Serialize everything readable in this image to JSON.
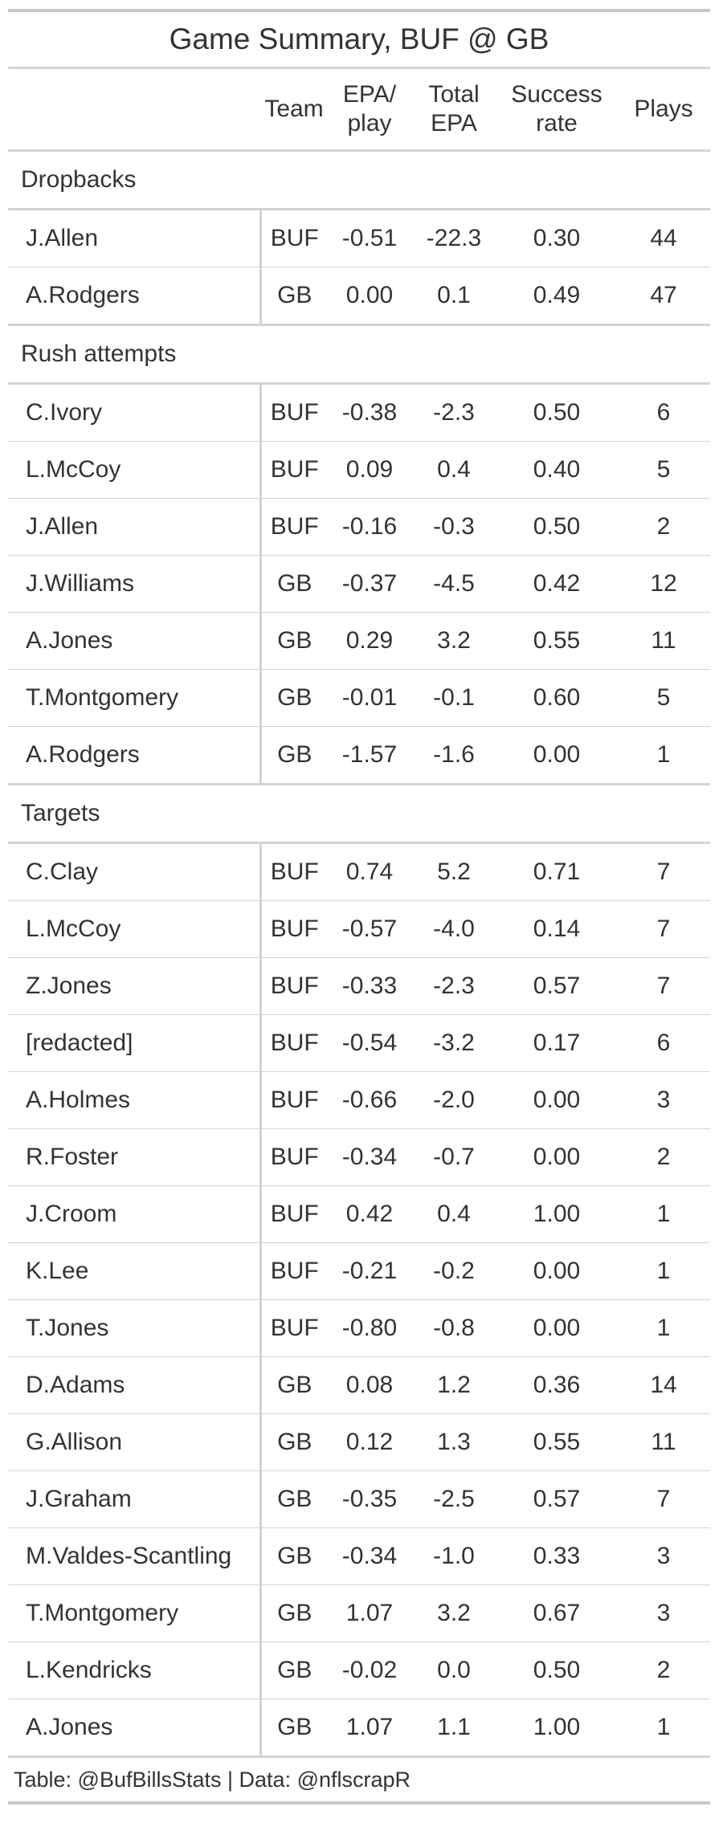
{
  "chart_data": {
    "type": "table",
    "title": "Game Summary, BUF @ GB",
    "columns": [
      "",
      "Team",
      "EPA/\nplay",
      "Total\nEPA",
      "Success\nrate",
      "Plays"
    ],
    "groups": [
      {
        "name": "Dropbacks",
        "rows": [
          [
            "J.Allen",
            "BUF",
            "-0.51",
            "-22.3",
            "0.30",
            "44"
          ],
          [
            "A.Rodgers",
            "GB",
            "0.00",
            "0.1",
            "0.49",
            "47"
          ]
        ]
      },
      {
        "name": "Rush attempts",
        "rows": [
          [
            "C.Ivory",
            "BUF",
            "-0.38",
            "-2.3",
            "0.50",
            "6"
          ],
          [
            "L.McCoy",
            "BUF",
            "0.09",
            "0.4",
            "0.40",
            "5"
          ],
          [
            "J.Allen",
            "BUF",
            "-0.16",
            "-0.3",
            "0.50",
            "2"
          ],
          [
            "J.Williams",
            "GB",
            "-0.37",
            "-4.5",
            "0.42",
            "12"
          ],
          [
            "A.Jones",
            "GB",
            "0.29",
            "3.2",
            "0.55",
            "11"
          ],
          [
            "T.Montgomery",
            "GB",
            "-0.01",
            "-0.1",
            "0.60",
            "5"
          ],
          [
            "A.Rodgers",
            "GB",
            "-1.57",
            "-1.6",
            "0.00",
            "1"
          ]
        ]
      },
      {
        "name": "Targets",
        "rows": [
          [
            "C.Clay",
            "BUF",
            "0.74",
            "5.2",
            "0.71",
            "7"
          ],
          [
            "L.McCoy",
            "BUF",
            "-0.57",
            "-4.0",
            "0.14",
            "7"
          ],
          [
            "Z.Jones",
            "BUF",
            "-0.33",
            "-2.3",
            "0.57",
            "7"
          ],
          [
            "[redacted]",
            "BUF",
            "-0.54",
            "-3.2",
            "0.17",
            "6"
          ],
          [
            "A.Holmes",
            "BUF",
            "-0.66",
            "-2.0",
            "0.00",
            "3"
          ],
          [
            "R.Foster",
            "BUF",
            "-0.34",
            "-0.7",
            "0.00",
            "2"
          ],
          [
            "J.Croom",
            "BUF",
            "0.42",
            "0.4",
            "1.00",
            "1"
          ],
          [
            "K.Lee",
            "BUF",
            "-0.21",
            "-0.2",
            "0.00",
            "1"
          ],
          [
            "T.Jones",
            "BUF",
            "-0.80",
            "-0.8",
            "0.00",
            "1"
          ],
          [
            "D.Adams",
            "GB",
            "0.08",
            "1.2",
            "0.36",
            "14"
          ],
          [
            "G.Allison",
            "GB",
            "0.12",
            "1.3",
            "0.55",
            "11"
          ],
          [
            "J.Graham",
            "GB",
            "-0.35",
            "-2.5",
            "0.57",
            "7"
          ],
          [
            "M.Valdes-Scantling",
            "GB",
            "-0.34",
            "-1.0",
            "0.33",
            "3"
          ],
          [
            "T.Montgomery",
            "GB",
            "1.07",
            "3.2",
            "0.67",
            "3"
          ],
          [
            "L.Kendricks",
            "GB",
            "-0.02",
            "0.0",
            "0.50",
            "2"
          ],
          [
            "A.Jones",
            "GB",
            "1.07",
            "1.1",
            "1.00",
            "1"
          ]
        ]
      }
    ],
    "source_note": "Table: @BufBillsStats | Data: @nflscrapR"
  }
}
